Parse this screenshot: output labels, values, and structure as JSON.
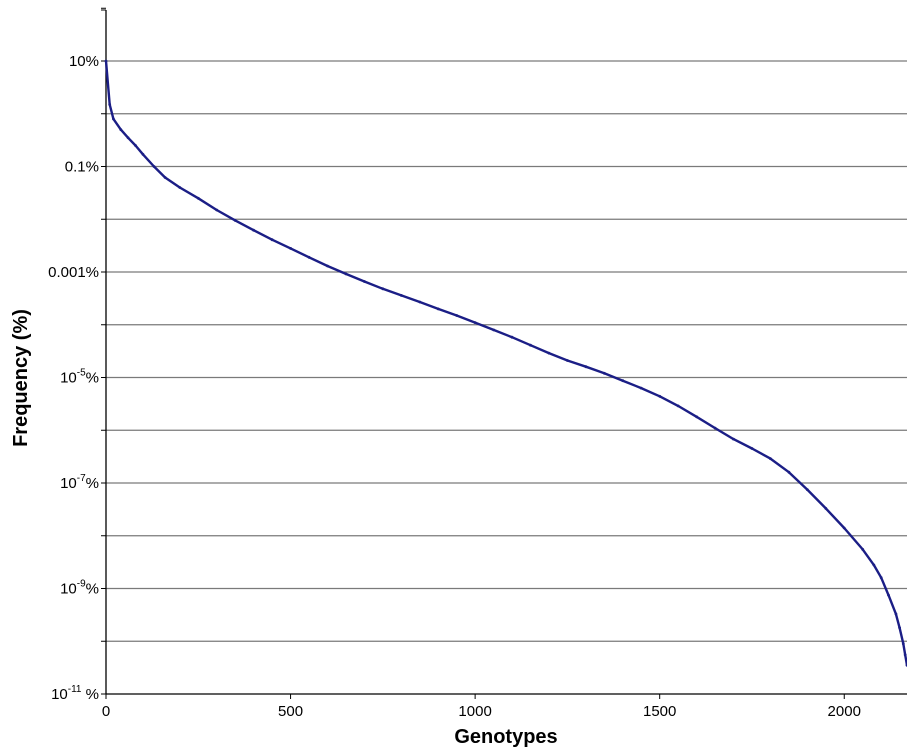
{
  "chart_data": {
    "type": "line",
    "title": "",
    "xlabel": "Genotypes",
    "ylabel": "Frequency (%)",
    "xlim": [
      0,
      2170
    ],
    "ylim_log10_percent": [
      -11,
      2
    ],
    "y_scale": "log",
    "grid": "horizontal",
    "legend": "none",
    "x_ticks": [
      "0",
      "500",
      "1000",
      "1500",
      "2000"
    ],
    "x_tick_values": [
      0,
      500,
      1000,
      1500,
      2000
    ],
    "y_ticks": [
      {
        "value": 10,
        "base": "10%",
        "sup": ""
      },
      {
        "value": 0.1,
        "base": "0.1%",
        "sup": ""
      },
      {
        "value": 0.001,
        "base": "0.001%",
        "sup": ""
      },
      {
        "value": 1e-05,
        "base": "10",
        "sup": "-5",
        "unit": "%"
      },
      {
        "value": 1e-07,
        "base": "10",
        "sup": "-7",
        "unit": "%"
      },
      {
        "value": 1e-09,
        "base": "10",
        "sup": "-9",
        "unit": "%"
      },
      {
        "value": 1e-11,
        "base": "10",
        "sup": "-11",
        "unit": " %"
      }
    ],
    "series": [
      {
        "color": "#1b1e86",
        "x": [
          0,
          10,
          20,
          40,
          60,
          80,
          100,
          130,
          160,
          200,
          250,
          300,
          350,
          400,
          450,
          500,
          550,
          600,
          650,
          700,
          750,
          800,
          850,
          900,
          950,
          1000,
          1050,
          1100,
          1150,
          1200,
          1250,
          1300,
          1350,
          1400,
          1450,
          1500,
          1550,
          1600,
          1650,
          1700,
          1750,
          1800,
          1850,
          1900,
          1950,
          2000,
          2050,
          2080,
          2100,
          2120,
          2140,
          2150,
          2160,
          2165,
          2170
        ],
        "y": [
          10,
          1.5,
          0.8,
          0.5,
          0.35,
          0.25,
          0.17,
          0.1,
          0.062,
          0.04,
          0.025,
          0.015,
          0.0095,
          0.0062,
          0.0041,
          0.0028,
          0.0019,
          0.0013,
          0.00092,
          0.00066,
          0.00048,
          0.00036,
          0.00027,
          0.0002,
          0.00015,
          0.00011,
          8e-05,
          5.8e-05,
          4.1e-05,
          2.9e-05,
          2.1e-05,
          1.6e-05,
          1.2e-05,
          8.7e-06,
          6.3e-06,
          4.4e-06,
          2.9e-06,
          1.8e-06,
          1.1e-06,
          6.8e-07,
          4.5e-07,
          2.9e-07,
          1.6e-07,
          7.5e-08,
          3.3e-08,
          1.4e-08,
          5.5e-09,
          2.8e-09,
          1.6e-09,
          7.5e-10,
          3.3e-10,
          1.8e-10,
          9e-11,
          5.5e-11,
          3.5e-11
        ]
      }
    ]
  }
}
